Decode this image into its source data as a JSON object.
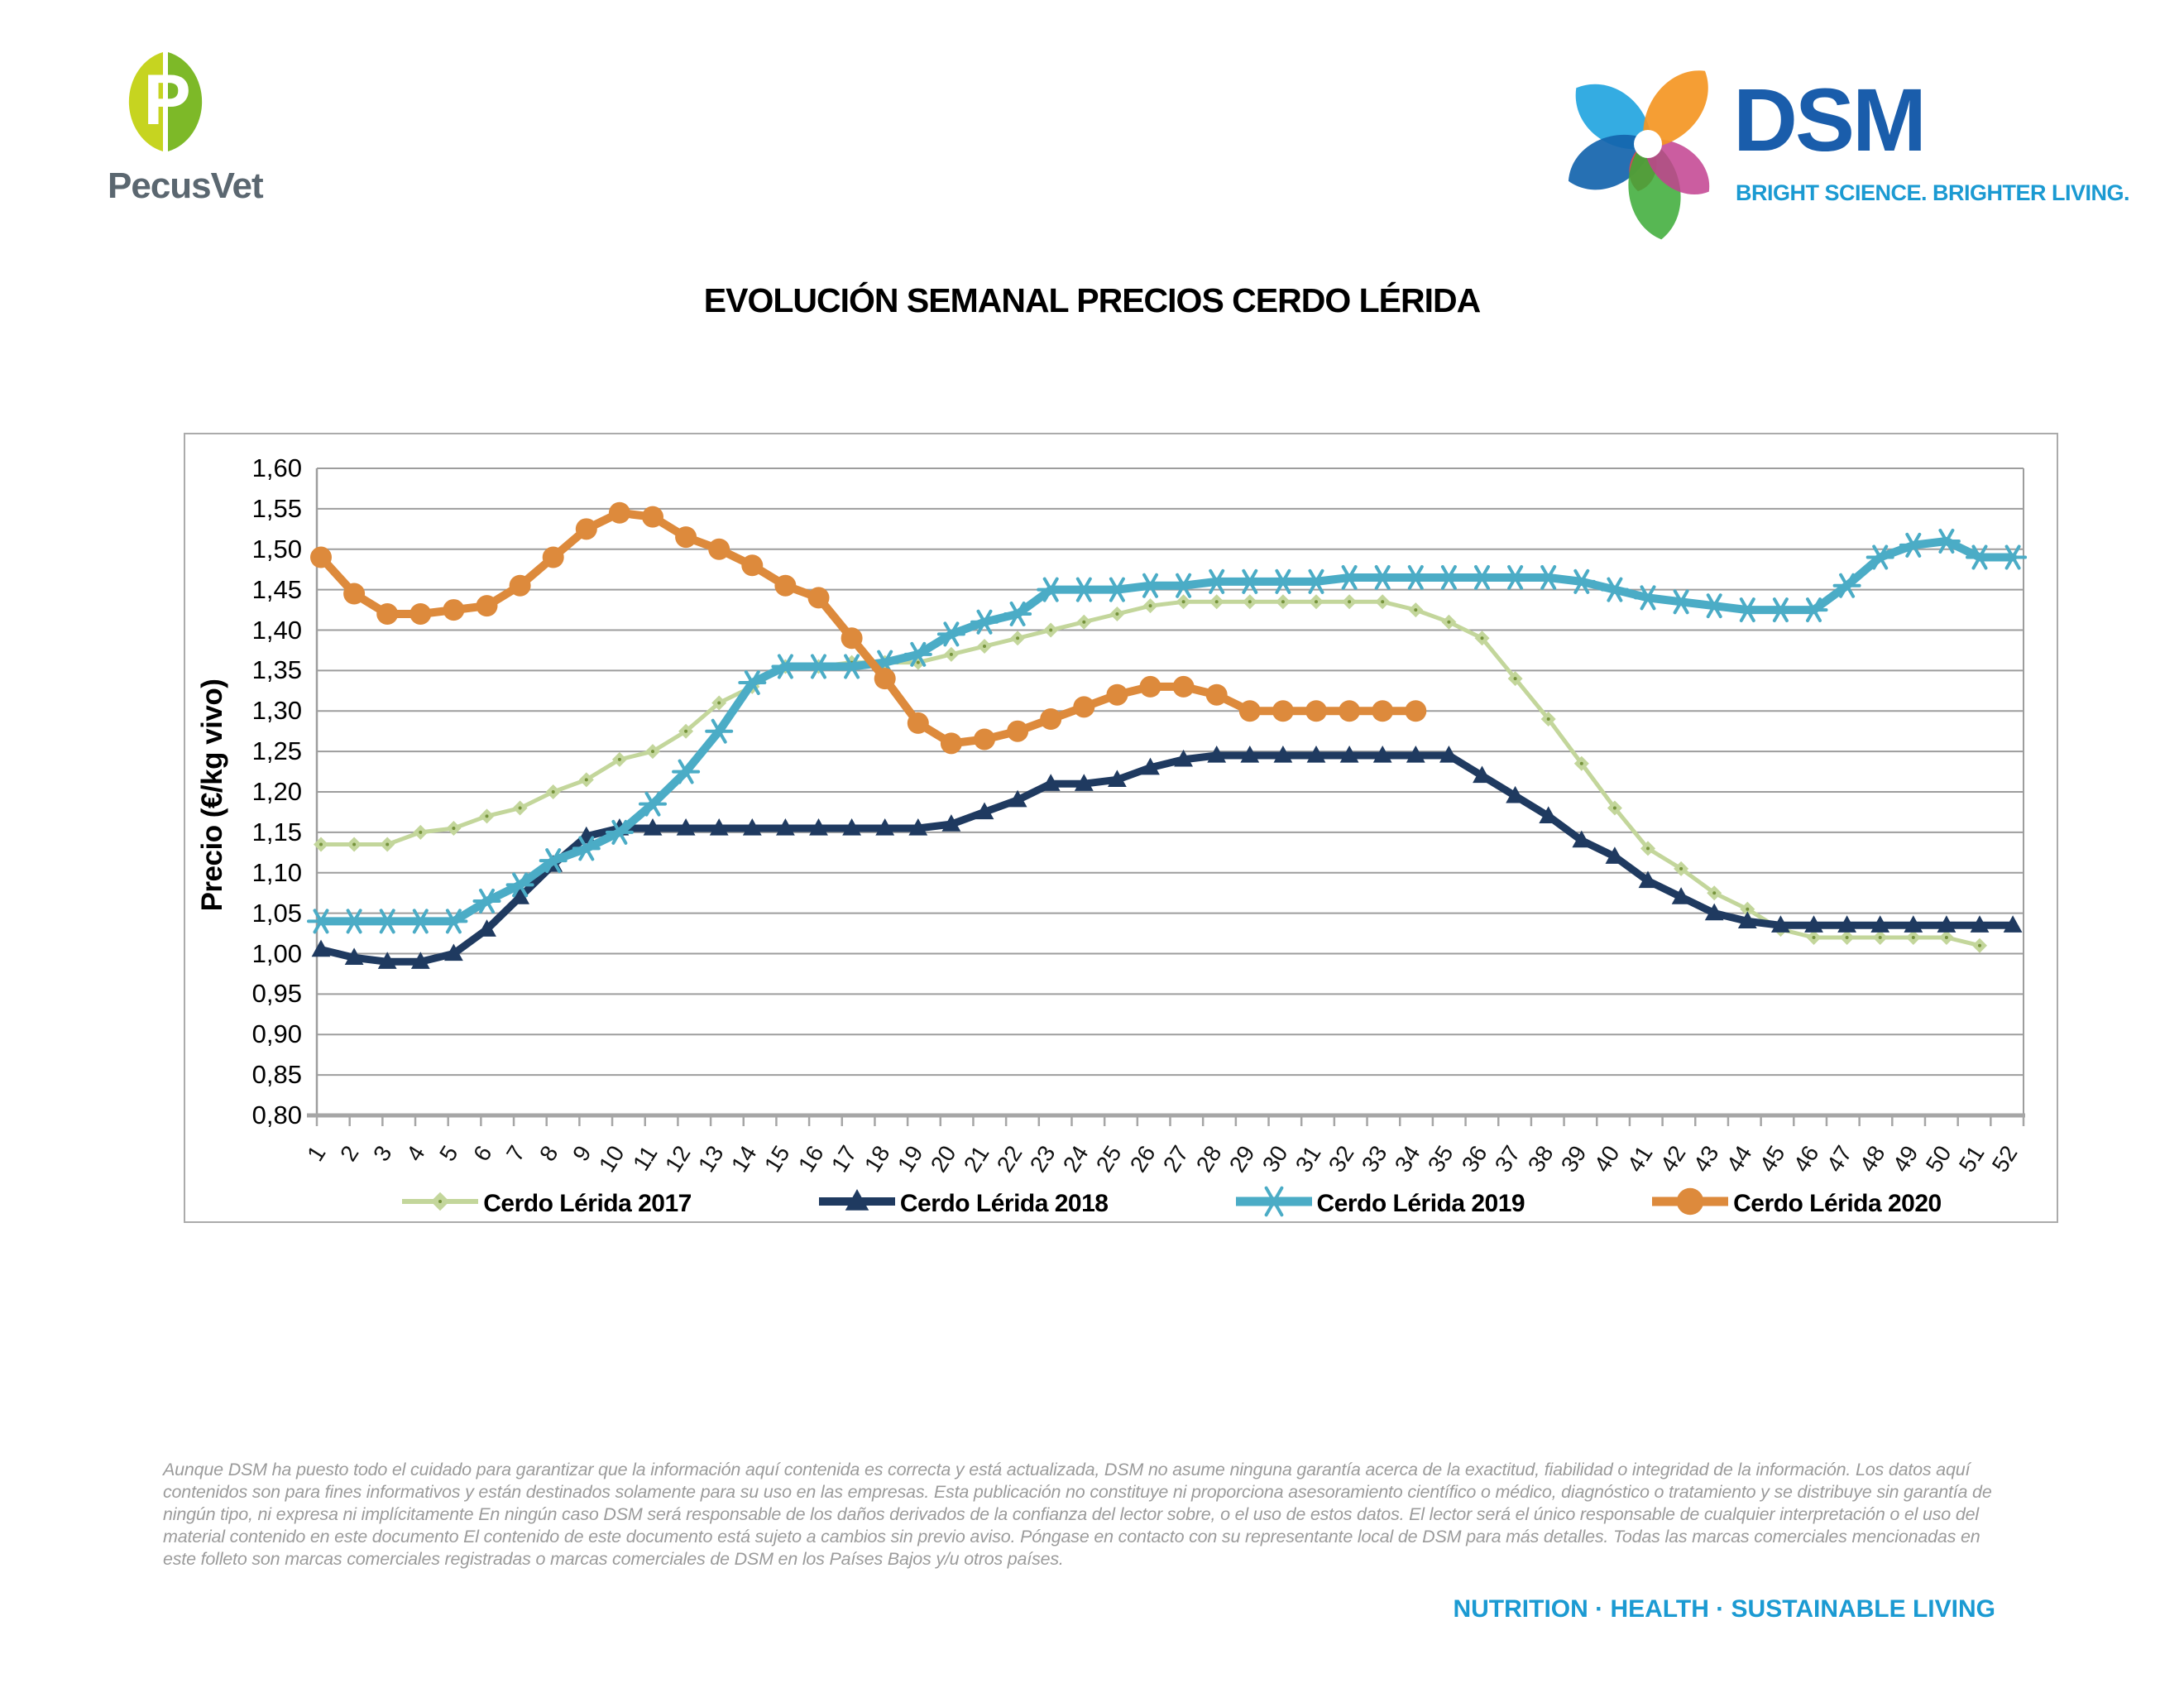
{
  "header": {
    "pecusvet": {
      "brand": "PecusVet",
      "letter": "P",
      "oval_left_color": "#c6d420",
      "oval_right_color": "#7db928",
      "text_color": "#5b6770"
    },
    "dsm": {
      "brand": "DSM",
      "tagline": "BRIGHT SCIENCE. BRIGHTER LIVING.",
      "text_color": "#1a5dab",
      "tagline_color": "#1b9ad2"
    }
  },
  "chart_data": {
    "type": "line",
    "title": "EVOLUCIÓN SEMANAL PRECIOS CERDO LÉRIDA",
    "xlabel": "",
    "ylabel": "Precio (€/kg vivo)",
    "ylim": [
      0.8,
      1.6
    ],
    "ytick_step": 0.05,
    "ytick_labels": [
      "1,60",
      "1,55",
      "1,50",
      "1,45",
      "1,40",
      "1,35",
      "1,30",
      "1,25",
      "1,20",
      "1,15",
      "1,10",
      "1,05",
      "1,00",
      "0,95",
      "0,90",
      "0,85",
      "0,80"
    ],
    "grid": true,
    "legend_position": "bottom",
    "x": [
      1,
      2,
      3,
      4,
      5,
      6,
      7,
      8,
      9,
      10,
      11,
      12,
      13,
      14,
      15,
      16,
      17,
      18,
      19,
      20,
      21,
      22,
      23,
      24,
      25,
      26,
      27,
      28,
      29,
      30,
      31,
      32,
      33,
      34,
      35,
      36,
      37,
      38,
      39,
      40,
      41,
      42,
      43,
      44,
      45,
      46,
      47,
      48,
      49,
      50,
      51,
      52
    ],
    "series": [
      {
        "name": "Cerdo Lérida 2017",
        "color": "#c3d69b",
        "marker": "diamond",
        "values": [
          1.135,
          1.135,
          1.135,
          1.15,
          1.155,
          1.17,
          1.18,
          1.2,
          1.215,
          1.24,
          1.25,
          1.275,
          1.31,
          1.33,
          1.355,
          1.355,
          1.36,
          1.36,
          1.36,
          1.37,
          1.38,
          1.39,
          1.4,
          1.41,
          1.42,
          1.43,
          1.435,
          1.435,
          1.435,
          1.435,
          1.435,
          1.435,
          1.435,
          1.425,
          1.41,
          1.39,
          1.34,
          1.29,
          1.235,
          1.18,
          1.13,
          1.105,
          1.075,
          1.055,
          1.03,
          1.02,
          1.02,
          1.02,
          1.02,
          1.02,
          1.01,
          null
        ]
      },
      {
        "name": "Cerdo Lérida 2018",
        "color": "#1f3a60",
        "marker": "triangle",
        "values": [
          1.005,
          0.995,
          0.99,
          0.99,
          1.0,
          1.03,
          1.07,
          1.11,
          1.145,
          1.155,
          1.155,
          1.155,
          1.155,
          1.155,
          1.155,
          1.155,
          1.155,
          1.155,
          1.155,
          1.16,
          1.175,
          1.19,
          1.21,
          1.21,
          1.215,
          1.23,
          1.24,
          1.245,
          1.245,
          1.245,
          1.245,
          1.245,
          1.245,
          1.245,
          1.245,
          1.22,
          1.195,
          1.17,
          1.14,
          1.12,
          1.09,
          1.07,
          1.05,
          1.04,
          1.035,
          1.035,
          1.035,
          1.035,
          1.035,
          1.035,
          1.035,
          1.035
        ]
      },
      {
        "name": "Cerdo Lérida 2019",
        "color": "#4bacc6",
        "marker": "asterisk",
        "values": [
          1.04,
          1.04,
          1.04,
          1.04,
          1.04,
          1.065,
          1.085,
          1.115,
          1.13,
          1.15,
          1.185,
          1.225,
          1.275,
          1.335,
          1.355,
          1.355,
          1.355,
          1.36,
          1.37,
          1.395,
          1.41,
          1.42,
          1.45,
          1.45,
          1.45,
          1.455,
          1.455,
          1.46,
          1.46,
          1.46,
          1.46,
          1.465,
          1.465,
          1.465,
          1.465,
          1.465,
          1.465,
          1.465,
          1.46,
          1.45,
          1.44,
          1.435,
          1.43,
          1.425,
          1.425,
          1.425,
          1.455,
          1.49,
          1.505,
          1.51,
          1.49,
          1.49
        ]
      },
      {
        "name": "Cerdo Lérida 2020",
        "color": "#dd8a3c",
        "marker": "circle",
        "values": [
          1.49,
          1.445,
          1.42,
          1.42,
          1.425,
          1.43,
          1.455,
          1.49,
          1.525,
          1.545,
          1.54,
          1.515,
          1.5,
          1.48,
          1.455,
          1.44,
          1.39,
          1.34,
          1.285,
          1.26,
          1.265,
          1.275,
          1.29,
          1.305,
          1.32,
          1.33,
          1.33,
          1.32,
          1.3,
          1.3,
          1.3,
          1.3,
          1.3,
          1.3
        ]
      }
    ]
  },
  "footer": {
    "disclaimer": "Aunque DSM ha puesto todo el cuidado para garantizar que la información aquí contenida es correcta y está actualizada, DSM no asume ninguna garantía acerca de la exactitud, fiabilidad o integridad de la información. Los datos aquí contenidos son para fines informativos y están destinados solamente para su uso en las empresas. Esta publicación no constituye ni proporciona asesoramiento científico o médico, diagnóstico o tratamiento y se distribuye sin garantía de ningún tipo, ni expresa ni implícitamente En ningún caso DSM será responsable de los daños derivados de la confianza del lector sobre, o el uso de estos datos. El lector será el único responsable de cualquier interpretación o el uso del material contenido en este documento El contenido de este documento está sujeto a cambios sin previo aviso. Póngase en contacto con su representante local de DSM para más detalles. Todas las marcas comerciales mencionadas en este folleto son marcas comerciales registradas o marcas comerciales de DSM en los Países Bajos y/u otros países.",
    "tagline": "NUTRITION  ·  HEALTH  ·  SUSTAINABLE LIVING"
  }
}
